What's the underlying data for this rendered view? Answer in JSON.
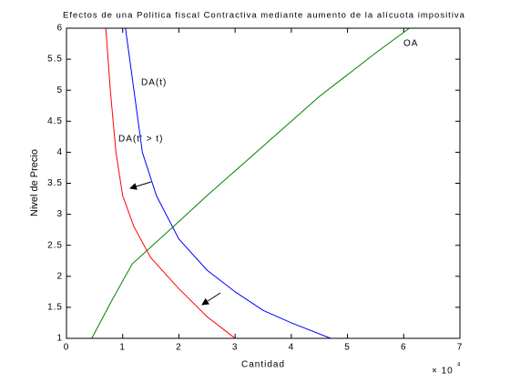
{
  "chart_data": {
    "type": "line",
    "title": "Efectos de una Politica fiscal Contractiva mediante aumento de la alícuota impositiva",
    "x_label": "Cantidad",
    "y_label": "Nivel de Precio",
    "x_scale_label": "× 10",
    "x_scale_exponent": "4",
    "annotations": [
      "DA(t)",
      "DA(t' > t)",
      "OA"
    ],
    "xlim": [
      0,
      7
    ],
    "xticks": [
      0,
      1,
      2,
      3,
      4,
      5,
      6,
      7
    ],
    "ylim": [
      1,
      6
    ],
    "yticks": [
      1,
      1.5,
      2,
      2.5,
      3,
      3.5,
      4,
      4.5,
      5,
      5.5,
      6
    ],
    "grid": false,
    "series": [
      {
        "color": "#ff0000",
        "x": [
          0.7,
          0.78,
          0.88,
          1.0,
          1.2,
          1.5,
          2.0,
          2.5,
          3.0
        ],
        "values": [
          6,
          5,
          4,
          3.3,
          2.8,
          2.3,
          1.8,
          1.35,
          1.0
        ]
      },
      {
        "color": "#0000ff",
        "x": [
          1.05,
          1.2,
          1.35,
          1.6,
          2.0,
          2.5,
          3.0,
          3.5,
          4.0,
          4.7
        ],
        "values": [
          6,
          5,
          4,
          3.3,
          2.6,
          2.1,
          1.75,
          1.45,
          1.25,
          1.0
        ]
      },
      {
        "color": "#008000",
        "x": [
          0.45,
          0.8,
          1.17,
          1.9,
          2.5,
          3.5,
          4.5,
          5.5,
          6.1
        ],
        "values": [
          1,
          1.6,
          2.2,
          2.8,
          3.3,
          4.1,
          4.9,
          5.6,
          6.0
        ]
      }
    ]
  }
}
